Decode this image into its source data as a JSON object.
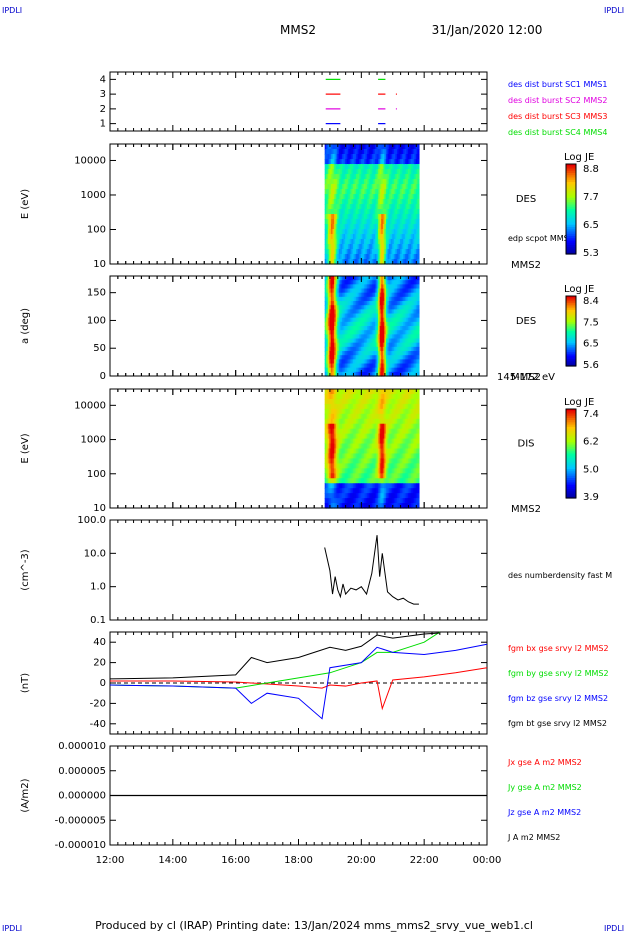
{
  "corner_label": "IPDLI",
  "spacecraft": "MMS2",
  "datetime": "31/Jan/2020 12:00",
  "footer": "Produced by cl (IRAP)   Printing date: 13/Jan/2024   mms_mms2_srvy_vue_web1.cl",
  "colors": {
    "red": "#ff0000",
    "green": "#00dd00",
    "blue": "#0000ff",
    "magenta": "#e000e0",
    "black": "#000000"
  },
  "time_axis": {
    "ticks": [
      "12:00",
      "14:00",
      "16:00",
      "18:00",
      "20:00",
      "22:00",
      "00:00"
    ]
  },
  "chart_data": [
    {
      "type": "line",
      "name": "burst-availability",
      "ylim": [
        0.5,
        4.5
      ],
      "yticks": [
        "4",
        "3",
        "2",
        "1"
      ],
      "legend": [
        {
          "label": "des dist burst SC1 MMS1",
          "color": "#0000ff"
        },
        {
          "label": "des dist burst SC2 MMS2",
          "color": "#e000e0"
        },
        {
          "label": "des dist burst SC3 MMS3",
          "color": "#ff0000"
        },
        {
          "label": "des dist burst SC4 MMS4",
          "color": "#00dd00"
        }
      ],
      "segments": [
        {
          "y": 4,
          "color": "#00dd00",
          "ranges": [
            [
              "18:52",
              "19:20"
            ],
            [
              "20:32",
              "20:46"
            ]
          ]
        },
        {
          "y": 3,
          "color": "#ff0000",
          "ranges": [
            [
              "18:52",
              "19:20"
            ],
            [
              "20:32",
              "20:46"
            ],
            [
              "21:06",
              "21:08"
            ]
          ]
        },
        {
          "y": 2,
          "color": "#e000e0",
          "ranges": [
            [
              "18:52",
              "19:20"
            ],
            [
              "20:32",
              "20:46"
            ],
            [
              "21:06",
              "21:08"
            ]
          ]
        },
        {
          "y": 1,
          "color": "#0000ff",
          "ranges": [
            [
              "18:52",
              "19:20"
            ],
            [
              "20:32",
              "20:46"
            ]
          ]
        }
      ]
    },
    {
      "type": "heatmap",
      "name": "des-energy",
      "ylabel": "E (eV)",
      "scale": "log",
      "ylim": [
        10,
        30000
      ],
      "yticks": [
        "10000",
        "1000",
        "100",
        "10"
      ],
      "instrument": "DES",
      "sublabel": "edp scpot MMS2",
      "sc_label": "MMS2",
      "cbar_title": "Log JE",
      "cbar_ticks": [
        "8.8",
        "7.7",
        "6.5",
        "5.3"
      ],
      "data_range": [
        "18:50",
        "21:50"
      ]
    },
    {
      "type": "heatmap",
      "name": "des-pitch",
      "ylabel": "a (deg)",
      "ylim": [
        0,
        180
      ],
      "yticks": [
        "150",
        "100",
        "50",
        "0"
      ],
      "instrument": "DES",
      "sc_label": "MMS2",
      "energy_band": "145-172 eV",
      "cbar_title": "Log JE",
      "cbar_ticks": [
        "8.4",
        "7.5",
        "6.5",
        "5.6"
      ],
      "data_range": [
        "18:50",
        "21:50"
      ]
    },
    {
      "type": "heatmap",
      "name": "dis-energy",
      "ylabel": "E (eV)",
      "scale": "log",
      "ylim": [
        10,
        30000
      ],
      "yticks": [
        "10000",
        "1000",
        "100",
        "10"
      ],
      "instrument": "DIS",
      "sc_label": "MMS2",
      "cbar_title": "Log JE",
      "cbar_ticks": [
        "7.4",
        "6.2",
        "5.0",
        "3.9"
      ],
      "data_range": [
        "18:50",
        "21:50"
      ]
    },
    {
      "type": "line",
      "name": "density",
      "ylabel": "(cm^-3)",
      "scale": "log",
      "ylim": [
        0.1,
        100
      ],
      "yticks": [
        "100.0",
        "10.0",
        "1.0",
        "0.1"
      ],
      "series": [
        {
          "name": "des numberdensity fast M",
          "color": "#000000",
          "x": [
            "18:50",
            "19:00",
            "19:05",
            "19:10",
            "19:15",
            "19:20",
            "19:25",
            "19:30",
            "19:40",
            "19:50",
            "20:00",
            "20:10",
            "20:20",
            "20:30",
            "20:35",
            "20:40",
            "20:50",
            "21:00",
            "21:10",
            "21:20",
            "21:30",
            "21:40",
            "21:50"
          ],
          "values": [
            15,
            3,
            0.6,
            2,
            0.8,
            0.5,
            1.2,
            0.6,
            0.9,
            0.8,
            1.0,
            0.6,
            2.5,
            35,
            2,
            10,
            0.7,
            0.5,
            0.4,
            0.45,
            0.35,
            0.3,
            0.3
          ]
        }
      ]
    },
    {
      "type": "line",
      "name": "magnetic-field",
      "ylabel": "(nT)",
      "ylim": [
        -50,
        50
      ],
      "yticks": [
        "40",
        "20",
        "0",
        "-20",
        "-40"
      ],
      "series": [
        {
          "name": "fgm bx gse srvy l2 MMS2",
          "color": "#ff0000",
          "x": [
            "12:00",
            "14:00",
            "16:00",
            "18:00",
            "18:45",
            "19:00",
            "19:30",
            "20:00",
            "20:30",
            "20:40",
            "21:00",
            "22:00",
            "23:00",
            "00:00"
          ],
          "values": [
            2,
            2,
            1,
            -3,
            -5,
            -2,
            -3,
            0,
            2,
            -25,
            3,
            6,
            10,
            15
          ]
        },
        {
          "name": "fgm by gse srvy l2 MMS2",
          "color": "#00dd00",
          "x": [
            "12:00",
            "14:00",
            "16:00",
            "17:00",
            "18:00",
            "19:00",
            "19:30",
            "20:00",
            "20:30",
            "21:00",
            "21:30",
            "22:00",
            "22:30"
          ],
          "values": [
            -2,
            -3,
            -5,
            0,
            5,
            10,
            15,
            20,
            30,
            30,
            35,
            40,
            50
          ]
        },
        {
          "name": "fgm bz gse srvy l2 MMS2",
          "color": "#0000ff",
          "x": [
            "12:00",
            "14:00",
            "16:00",
            "16:30",
            "17:00",
            "18:00",
            "18:45",
            "19:00",
            "20:00",
            "20:30",
            "21:00",
            "22:00",
            "23:00",
            "00:00"
          ],
          "values": [
            -2,
            -3,
            -5,
            -20,
            -10,
            -15,
            -35,
            15,
            20,
            35,
            30,
            28,
            32,
            38
          ]
        },
        {
          "name": "fgm bt gse srvy l2 MMS2",
          "color": "#000000",
          "x": [
            "12:00",
            "14:00",
            "16:00",
            "16:30",
            "17:00",
            "18:00",
            "18:30",
            "19:00",
            "19:30",
            "20:00",
            "20:30",
            "21:00",
            "22:00",
            "22:30"
          ],
          "values": [
            4,
            5,
            8,
            25,
            20,
            25,
            30,
            35,
            32,
            36,
            47,
            44,
            48,
            49
          ]
        }
      ]
    },
    {
      "type": "line",
      "name": "current-density",
      "ylabel": "(A/m2)",
      "ylim": [
        -1e-05,
        1e-05
      ],
      "yticks": [
        "0.000010",
        "0.000005",
        "0.000000",
        "-0.000005",
        "-0.000010"
      ],
      "series": [
        {
          "name": "Jx gse A m2 MMS2",
          "color": "#ff0000",
          "values": [
            0
          ]
        },
        {
          "name": "Jy gse A m2 MMS2",
          "color": "#00dd00",
          "values": [
            0
          ]
        },
        {
          "name": "Jz gse A m2 MMS2",
          "color": "#0000ff",
          "values": [
            0
          ]
        },
        {
          "name": "J A m2 MMS2",
          "color": "#000000",
          "values": [
            0
          ]
        }
      ]
    }
  ]
}
